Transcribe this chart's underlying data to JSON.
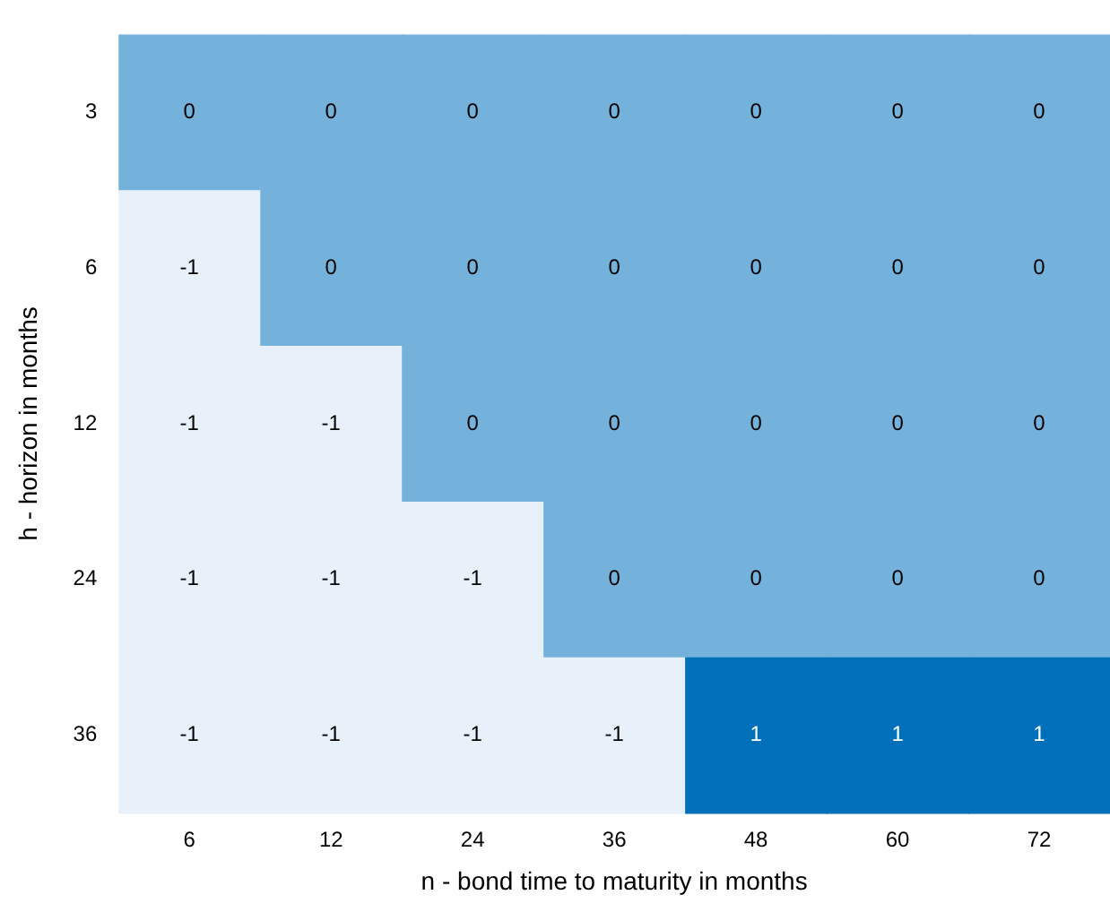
{
  "chart_data": {
    "type": "heatmap",
    "xlabel": "n - bond time to maturity in months",
    "ylabel": "h - horizon in months",
    "categories": [
      "6",
      "12",
      "24",
      "36",
      "48",
      "60",
      "72"
    ],
    "y_categories": [
      "3",
      "6",
      "12",
      "24",
      "36"
    ],
    "cells": [
      [
        0,
        0,
        0,
        0,
        0,
        0,
        0
      ],
      [
        -1,
        0,
        0,
        0,
        0,
        0,
        0
      ],
      [
        -1,
        -1,
        0,
        0,
        0,
        0,
        0
      ],
      [
        -1,
        -1,
        -1,
        0,
        0,
        0,
        0
      ],
      [
        -1,
        -1,
        -1,
        -1,
        1,
        1,
        1
      ]
    ],
    "data_labels": true
  }
}
